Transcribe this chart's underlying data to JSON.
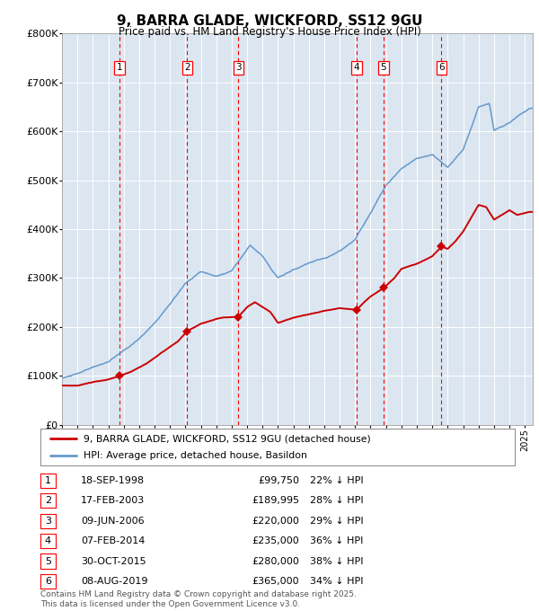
{
  "title": "9, BARRA GLADE, WICKFORD, SS12 9GU",
  "subtitle": "Price paid vs. HM Land Registry's House Price Index (HPI)",
  "ylim": [
    0,
    800000
  ],
  "yticks": [
    0,
    100000,
    200000,
    300000,
    400000,
    500000,
    600000,
    700000,
    800000
  ],
  "ytick_labels": [
    "£0",
    "£100K",
    "£200K",
    "£300K",
    "£400K",
    "£500K",
    "£600K",
    "£700K",
    "£800K"
  ],
  "bg_color": "#dce6f1",
  "line_color_red": "#cc0000",
  "line_color_blue": "#6699cc",
  "transactions": [
    {
      "num": 1,
      "date": "18-SEP-1998",
      "date_x": 1998.72,
      "price": 99750,
      "pct": "22%",
      "dir": "↓"
    },
    {
      "num": 2,
      "date": "17-FEB-2003",
      "date_x": 2003.12,
      "price": 189995,
      "pct": "28%",
      "dir": "↓"
    },
    {
      "num": 3,
      "date": "09-JUN-2006",
      "date_x": 2006.44,
      "price": 220000,
      "pct": "29%",
      "dir": "↓"
    },
    {
      "num": 4,
      "date": "07-FEB-2014",
      "date_x": 2014.1,
      "price": 235000,
      "pct": "36%",
      "dir": "↓"
    },
    {
      "num": 5,
      "date": "30-OCT-2015",
      "date_x": 2015.83,
      "price": 280000,
      "pct": "38%",
      "dir": "↓"
    },
    {
      "num": 6,
      "date": "08-AUG-2019",
      "date_x": 2019.6,
      "price": 365000,
      "pct": "34%",
      "dir": "↓"
    }
  ],
  "legend_red": "9, BARRA GLADE, WICKFORD, SS12 9GU (detached house)",
  "legend_blue": "HPI: Average price, detached house, Basildon",
  "footnote": "Contains HM Land Registry data © Crown copyright and database right 2025.\nThis data is licensed under the Open Government Licence v3.0.",
  "xmin": 1995.0,
  "xmax": 2025.5,
  "hpi_key_x": [
    1995.0,
    1996.0,
    1997.0,
    1998.0,
    1999.0,
    2000.0,
    2001.0,
    2002.0,
    2003.0,
    2004.0,
    2005.0,
    2006.0,
    2007.2,
    2008.0,
    2009.0,
    2010.0,
    2011.0,
    2012.0,
    2013.0,
    2014.0,
    2015.0,
    2016.0,
    2017.0,
    2018.0,
    2019.0,
    2020.0,
    2021.0,
    2022.0,
    2022.7,
    2023.0,
    2024.0,
    2025.3
  ],
  "hpi_key_y": [
    95000,
    103000,
    115000,
    127000,
    148000,
    172000,
    205000,
    245000,
    285000,
    308000,
    298000,
    310000,
    363000,
    340000,
    298000,
    315000,
    325000,
    335000,
    350000,
    375000,
    430000,
    490000,
    525000,
    548000,
    555000,
    530000,
    565000,
    655000,
    660000,
    605000,
    620000,
    648000
  ],
  "red_key_x": [
    1995.0,
    1996.0,
    1997.0,
    1998.0,
    1998.72,
    1999.5,
    2000.5,
    2001.5,
    2002.5,
    2003.12,
    2004.0,
    2005.0,
    2005.5,
    2006.44,
    2007.0,
    2007.5,
    2008.5,
    2009.0,
    2010.0,
    2011.0,
    2012.0,
    2013.0,
    2014.1,
    2014.5,
    2015.0,
    2015.83,
    2016.5,
    2017.0,
    2018.0,
    2019.0,
    2019.6,
    2020.0,
    2020.5,
    2021.0,
    2022.0,
    2022.5,
    2023.0,
    2023.5,
    2024.0,
    2024.5,
    2025.3
  ],
  "red_key_y": [
    80000,
    80000,
    87000,
    93000,
    99750,
    108000,
    125000,
    148000,
    170000,
    189995,
    205000,
    215000,
    218000,
    220000,
    240000,
    250000,
    230000,
    208000,
    218000,
    225000,
    232000,
    238000,
    235000,
    248000,
    263000,
    280000,
    300000,
    320000,
    330000,
    345000,
    365000,
    360000,
    375000,
    395000,
    450000,
    445000,
    420000,
    430000,
    440000,
    430000,
    435000
  ]
}
